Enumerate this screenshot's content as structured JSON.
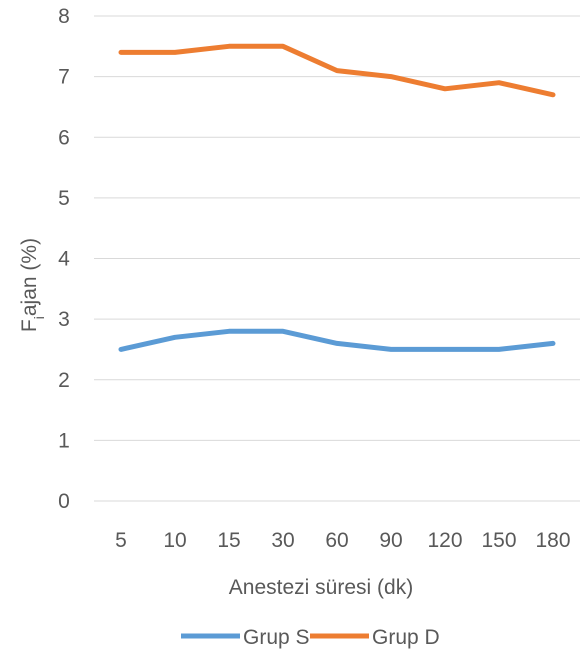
{
  "chart_data": {
    "type": "line",
    "categories": [
      "5",
      "10",
      "15",
      "30",
      "60",
      "90",
      "120",
      "150",
      "180"
    ],
    "series": [
      {
        "name": "Grup S",
        "color": "#5b9bd5",
        "values": [
          2.5,
          2.7,
          2.8,
          2.8,
          2.6,
          2.5,
          2.5,
          2.5,
          2.6
        ]
      },
      {
        "name": "Grup D",
        "color": "#ed7d31",
        "values": [
          7.4,
          7.4,
          7.5,
          7.5,
          7.1,
          7.0,
          6.8,
          6.9,
          6.7
        ]
      }
    ],
    "xlabel": "Anestezi süresi (dk)",
    "ylabel": {
      "main": "F",
      "sub": "i",
      "rest": "ajan (%)"
    },
    "ylim": [
      0,
      8
    ],
    "yticks": [
      "0",
      "1",
      "2",
      "3",
      "4",
      "5",
      "6",
      "7",
      "8"
    ],
    "grid": true,
    "legend": "bottom"
  }
}
